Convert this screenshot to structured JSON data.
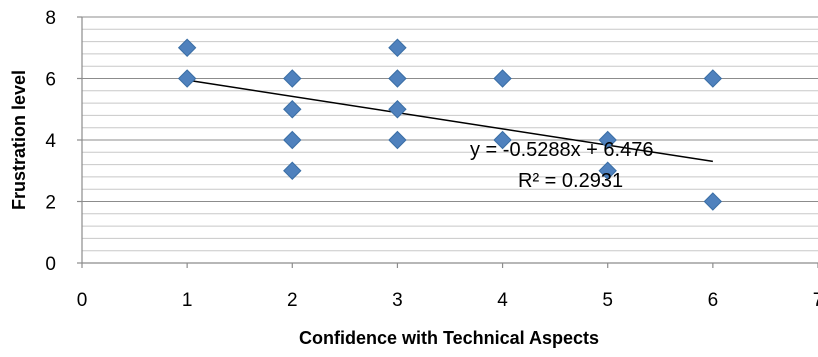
{
  "chart_data": {
    "type": "scatter",
    "xlabel": "Confidence with Technical Aspects",
    "ylabel": "Frustration level",
    "xlim": [
      0,
      7
    ],
    "ylim": [
      0,
      8
    ],
    "x_ticks": [
      0,
      1,
      2,
      3,
      4,
      5,
      6,
      7
    ],
    "y_ticks": [
      0,
      2,
      4,
      6,
      8
    ],
    "grid": "horizontal major and minor",
    "marker": "diamond",
    "colors": {
      "marker": "#4f81bd",
      "marker_edge": "#3a6ea5",
      "trendline": "#000000"
    },
    "series": [
      {
        "points": [
          {
            "x": 1,
            "y": 7
          },
          {
            "x": 1,
            "y": 6
          },
          {
            "x": 2,
            "y": 6
          },
          {
            "x": 2,
            "y": 5
          },
          {
            "x": 2,
            "y": 4
          },
          {
            "x": 2,
            "y": 3
          },
          {
            "x": 3,
            "y": 7
          },
          {
            "x": 3,
            "y": 6
          },
          {
            "x": 3,
            "y": 5
          },
          {
            "x": 3,
            "y": 4
          },
          {
            "x": 4,
            "y": 6
          },
          {
            "x": 4,
            "y": 4
          },
          {
            "x": 5,
            "y": 4
          },
          {
            "x": 5,
            "y": 3
          },
          {
            "x": 6,
            "y": 6
          },
          {
            "x": 6,
            "y": 2
          }
        ]
      }
    ],
    "trendline": {
      "type": "linear",
      "slope": -0.5288,
      "intercept": 6.476,
      "x_range": [
        1,
        6
      ]
    },
    "annotations": {
      "equation": "y = -0.5288x + 6.476",
      "r_squared": "R² = 0.2931"
    }
  }
}
